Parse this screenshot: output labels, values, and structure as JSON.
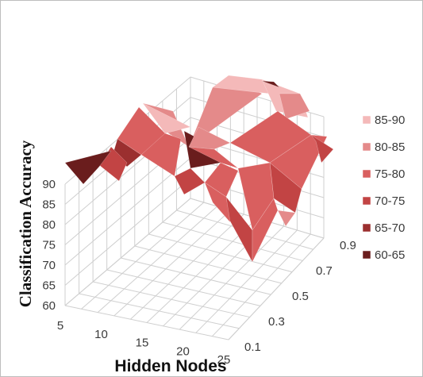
{
  "chart_data": {
    "type": "surface",
    "title": "",
    "xlabel": "Hidden Nodes",
    "ylabel": "Classification Accuracy",
    "x": [
      5,
      10,
      15,
      20,
      25
    ],
    "x_tick_labels": [
      "5",
      "10",
      "15",
      "20",
      "25"
    ],
    "depth_tick_labels": [
      "0.1",
      "0.3",
      "0.5",
      "0.7",
      "0.9"
    ],
    "zlim": [
      60,
      90
    ],
    "z_ticks": [
      "60",
      "65",
      "70",
      "75",
      "80",
      "85",
      "90"
    ],
    "grid": true,
    "legend_position": "right",
    "bands": [
      {
        "label": "85-90",
        "color": "#f4b9b9"
      },
      {
        "label": "80-85",
        "color": "#e48a8a"
      },
      {
        "label": "75-80",
        "color": "#d95f5f"
      },
      {
        "label": "70-75",
        "color": "#c24444"
      },
      {
        "label": "65-70",
        "color": "#9b2f2f"
      },
      {
        "label": "60-65",
        "color": "#6a1d1d"
      }
    ]
  }
}
